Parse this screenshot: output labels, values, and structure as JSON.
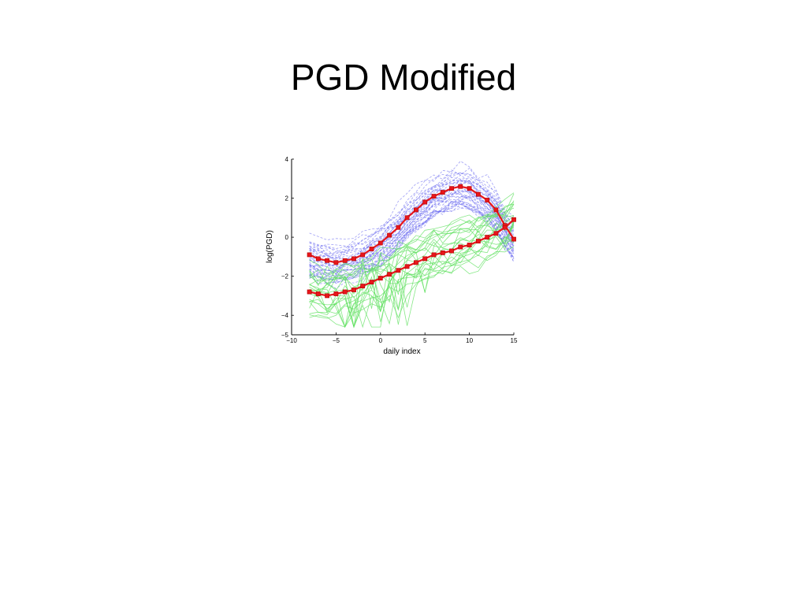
{
  "slide": {
    "title": "PGD Modified"
  },
  "chart_data": {
    "type": "line",
    "title": "",
    "xlabel": "daily index",
    "ylabel": "log(PGD)",
    "xlim": [
      -10,
      15
    ],
    "ylim": [
      -5,
      4
    ],
    "x_ticks": [
      -10,
      -5,
      0,
      5,
      10,
      15
    ],
    "y_ticks": [
      -5,
      -4,
      -2,
      0,
      2,
      4
    ],
    "x_tick_labels": [
      "−10",
      "−5",
      "0",
      "5",
      "10",
      "15"
    ],
    "y_tick_labels": [
      "−5",
      "−4",
      "−2",
      "0",
      "2",
      "4"
    ],
    "grid": false,
    "legend": "none",
    "x": [
      -8,
      -7,
      -6,
      -5,
      -4,
      -3,
      -2,
      -1,
      0,
      1,
      2,
      3,
      4,
      5,
      6,
      7,
      8,
      9,
      10,
      11,
      12,
      13,
      14,
      15
    ],
    "series": [
      {
        "style": "red-squares",
        "color": "#e8161b",
        "values": [
          -0.9,
          -1.1,
          -1.2,
          -1.3,
          -1.2,
          -1.1,
          -0.9,
          -0.6,
          -0.3,
          0.1,
          0.5,
          1.0,
          1.4,
          1.8,
          2.1,
          2.3,
          2.5,
          2.6,
          2.5,
          2.2,
          1.9,
          1.4,
          0.6,
          -0.1
        ]
      },
      {
        "style": "red-squares",
        "color": "#e8161b",
        "values": [
          -2.8,
          -2.9,
          -3.0,
          -2.9,
          -2.8,
          -2.7,
          -2.5,
          -2.3,
          -2.1,
          -1.9,
          -1.7,
          -1.5,
          -1.3,
          -1.1,
          -0.9,
          -0.8,
          -0.7,
          -0.5,
          -0.4,
          -0.2,
          0.0,
          0.2,
          0.5,
          0.9
        ]
      }
    ],
    "bundles": [
      {
        "name": "",
        "style": "dashed",
        "color": "#6f6ff0",
        "center": [
          -0.9,
          -1.1,
          -1.2,
          -1.3,
          -1.2,
          -1.1,
          -0.9,
          -0.6,
          -0.3,
          0.1,
          0.5,
          1.0,
          1.4,
          1.8,
          2.1,
          2.3,
          2.5,
          2.6,
          2.5,
          2.2,
          1.9,
          1.4,
          0.6,
          -0.1
        ],
        "count": 40,
        "spread": 1.3
      },
      {
        "name": "",
        "style": "solid",
        "color": "#5fe05f",
        "center": [
          -2.8,
          -2.9,
          -3.0,
          -2.9,
          -2.8,
          -2.7,
          -2.5,
          -2.3,
          -2.1,
          -1.9,
          -1.7,
          -1.5,
          -1.3,
          -1.1,
          -0.9,
          -0.8,
          -0.7,
          -0.5,
          -0.4,
          -0.2,
          0.0,
          0.2,
          0.5,
          0.9
        ],
        "count": 22,
        "spread": 1.6
      }
    ]
  }
}
